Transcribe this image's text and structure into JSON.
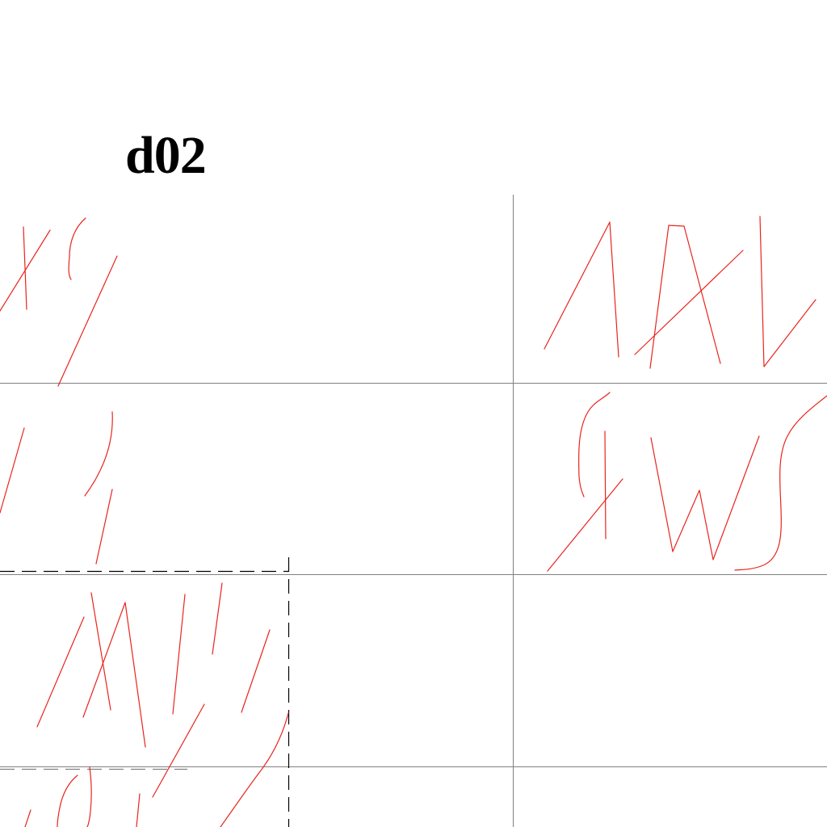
{
  "sheet": {
    "title": "d02"
  },
  "colors": {
    "background": "#ffffff",
    "title": "#000000",
    "grid_line": "#808080",
    "sketch_stroke": "#e8241e",
    "dashed_box": "#000000",
    "dashed_line": "#808080"
  }
}
